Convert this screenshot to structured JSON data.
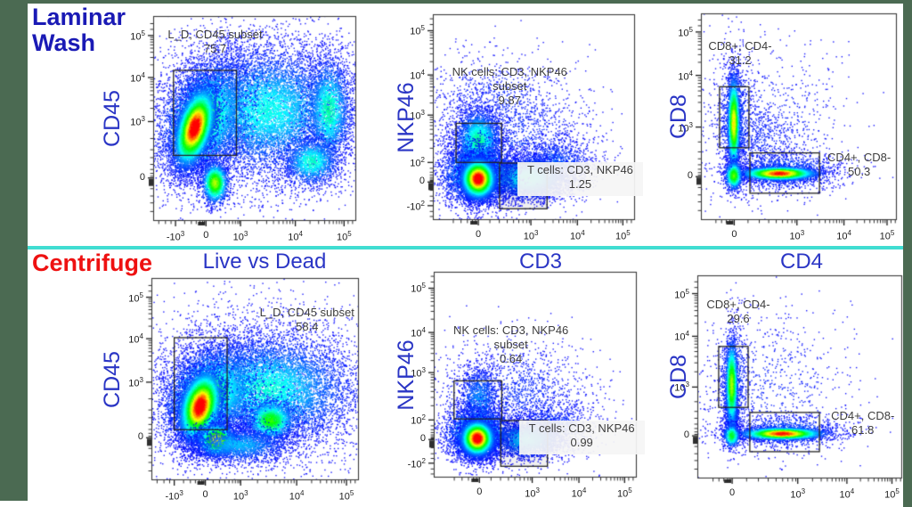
{
  "theme": {
    "header_blue": "#1a1ab5",
    "header_red": "#ee1111",
    "axis_blue": "#2a35c5",
    "divider_cyan": "#40ddd2",
    "border_green": "#4b6a52",
    "tick_color": "#1e1e1e",
    "gate_label_color": "#3d3d3d",
    "dot_base_blue": "#0000ff"
  },
  "headers": {
    "row1_line1": "Laminar",
    "row1_line2": "Wash",
    "row2": "Centrifuge"
  },
  "columns": [
    {
      "label": "Live vs Dead"
    },
    {
      "label": "CD3"
    },
    {
      "label": "CD4"
    }
  ],
  "clusters_format": "cx,cy,sx,sy,n,peak_level,rho (fractions of plot frame, y from top)",
  "chart_data": [
    {
      "id": "laminar-livedead-cd45",
      "type": "scatter",
      "row": "Laminar Wash",
      "xlabel": "Live vs Dead",
      "ylabel": "CD45",
      "xticks": [
        {
          "t": "-10",
          "s": "3",
          "v": -1000,
          "f": 0.11
        },
        {
          "t": "0",
          "v": 0,
          "f": 0.26
        },
        {
          "t": "10",
          "s": "3",
          "v": 1000,
          "f": 0.43
        },
        {
          "t": "10",
          "s": "4",
          "v": 10000,
          "f": 0.7
        },
        {
          "t": "10",
          "s": "5",
          "v": 100000,
          "f": 0.94
        }
      ],
      "yticks": [
        {
          "t": "10",
          "s": "5",
          "v": 100000,
          "f": 0.095
        },
        {
          "t": "10",
          "s": "4",
          "v": 10000,
          "f": 0.3
        },
        {
          "t": "10",
          "s": "3",
          "v": 1000,
          "f": 0.515
        },
        {
          "t": "0",
          "v": 0,
          "f": 0.79
        }
      ],
      "gates": [
        {
          "name": "L_D, CD45 subset",
          "value": "75.7",
          "rect": [
            0.1,
            0.265,
            0.41,
            0.68
          ],
          "fill": false,
          "label": {
            "x": 0.015,
            "y": 0.055,
            "w": 0.58,
            "bg": false
          }
        }
      ],
      "clusters": [
        [
          0.5,
          0.48,
          0.3,
          0.26,
          2400,
          0.05,
          0
        ],
        [
          0.56,
          0.46,
          0.2,
          0.15,
          8500,
          0.26,
          0
        ],
        [
          0.865,
          0.46,
          0.055,
          0.13,
          2400,
          0.33,
          0
        ],
        [
          0.78,
          0.71,
          0.07,
          0.06,
          1500,
          0.3,
          0
        ],
        [
          0.25,
          0.5,
          0.105,
          0.14,
          6000,
          0.42,
          -0.3
        ],
        [
          0.205,
          0.545,
          0.05,
          0.095,
          8000,
          1.0,
          -0.45
        ],
        [
          0.305,
          0.815,
          0.032,
          0.05,
          1700,
          0.62,
          0
        ]
      ]
    },
    {
      "id": "laminar-cd3-nkp46",
      "type": "scatter",
      "row": "Laminar Wash",
      "xlabel": "CD3",
      "ylabel": "NKP46",
      "xticks": [
        {
          "t": "0",
          "v": 0,
          "f": 0.225
        },
        {
          "t": "10",
          "s": "3",
          "v": 1000,
          "f": 0.485
        },
        {
          "t": "10",
          "s": "4",
          "v": 10000,
          "f": 0.715
        },
        {
          "t": "10",
          "s": "5",
          "v": 100000,
          "f": 0.94
        }
      ],
      "yticks": [
        {
          "t": "10",
          "s": "5",
          "v": 100000,
          "f": 0.08
        },
        {
          "t": "10",
          "s": "4",
          "v": 10000,
          "f": 0.295
        },
        {
          "t": "10",
          "s": "3",
          "v": 1000,
          "f": 0.49
        },
        {
          "t": "10",
          "s": "2",
          "v": 100,
          "f": 0.72
        },
        {
          "t": "0",
          "v": 0,
          "f": 0.815
        },
        {
          "t": "-10",
          "s": "2",
          "v": -100,
          "f": 0.93
        }
      ],
      "gates": [
        {
          "name": "NK cells: CD3, NKP46 subset",
          "value": "9.87",
          "rect": [
            0.115,
            0.53,
            0.34,
            0.72
          ],
          "fill": false,
          "label": {
            "x": 0.01,
            "y": 0.245,
            "w": 0.74,
            "bg": false
          }
        },
        {
          "name": "T cells: CD3, NKP46",
          "value": "1.25",
          "rect": [
            0.33,
            0.723,
            0.565,
            0.945
          ],
          "fill": true,
          "label": {
            "x": 0.42,
            "y": 0.72,
            "w": 0.6,
            "bg": true
          }
        }
      ],
      "clusters": [
        [
          0.38,
          0.62,
          0.22,
          0.18,
          1700,
          0.05,
          0
        ],
        [
          0.3,
          0.42,
          0.18,
          0.12,
          600,
          0.04,
          0
        ],
        [
          0.6,
          0.74,
          0.1,
          0.07,
          1400,
          0.1,
          0
        ],
        [
          0.47,
          0.795,
          0.095,
          0.05,
          4000,
          0.27,
          0
        ],
        [
          0.225,
          0.615,
          0.055,
          0.075,
          3000,
          0.34,
          0
        ],
        [
          0.225,
          0.78,
          0.085,
          0.075,
          4000,
          0.36,
          0
        ],
        [
          0.225,
          0.8,
          0.042,
          0.048,
          7200,
          1.0,
          0
        ]
      ]
    },
    {
      "id": "laminar-cd4-cd8",
      "type": "scatter",
      "row": "Laminar Wash",
      "xlabel": "CD4",
      "ylabel": "CD8",
      "xticks": [
        {
          "t": "0",
          "v": 0,
          "f": 0.17
        },
        {
          "t": "10",
          "s": "3",
          "v": 1000,
          "f": 0.49
        },
        {
          "t": "10",
          "s": "4",
          "v": 10000,
          "f": 0.73
        },
        {
          "t": "10",
          "s": "5",
          "v": 100000,
          "f": 0.95
        }
      ],
      "yticks": [
        {
          "t": "10",
          "s": "5",
          "v": 100000,
          "f": 0.09
        },
        {
          "t": "10",
          "s": "4",
          "v": 10000,
          "f": 0.3
        },
        {
          "t": "10",
          "s": "3",
          "v": 1000,
          "f": 0.55
        },
        {
          "t": "0",
          "v": 0,
          "f": 0.79
        }
      ],
      "gates": [
        {
          "name": "CD8+, CD4-",
          "value": "31.2",
          "rect": [
            0.095,
            0.355,
            0.245,
            0.65
          ],
          "fill": false,
          "label": {
            "x": 0.0,
            "y": 0.125,
            "w": 0.4,
            "bg": false
          }
        },
        {
          "name": "CD4+, CD8-",
          "value": "50.3",
          "rect": [
            0.25,
            0.675,
            0.605,
            0.87
          ],
          "fill": false,
          "label": {
            "x": 0.615,
            "y": 0.665,
            "w": 0.385,
            "bg": false
          }
        }
      ],
      "clusters": [
        [
          0.35,
          0.55,
          0.22,
          0.2,
          850,
          0.03,
          0
        ],
        [
          0.28,
          0.62,
          0.1,
          0.1,
          450,
          0.04,
          0
        ],
        [
          0.175,
          0.52,
          0.04,
          0.16,
          1000,
          0.12,
          0
        ],
        [
          0.168,
          0.53,
          0.016,
          0.115,
          2400,
          0.72,
          0
        ],
        [
          0.43,
          0.765,
          0.14,
          0.045,
          1300,
          0.12,
          0
        ],
        [
          0.4,
          0.775,
          0.095,
          0.016,
          3200,
          0.92,
          0
        ],
        [
          0.168,
          0.785,
          0.022,
          0.035,
          850,
          0.55,
          0
        ]
      ]
    },
    {
      "id": "centrifuge-livedead-cd45",
      "type": "scatter",
      "row": "Centrifuge",
      "xlabel": "Live vs Dead",
      "ylabel": "CD45",
      "xticks": [
        {
          "t": "-10",
          "s": "3",
          "v": -1000,
          "f": 0.11
        },
        {
          "t": "0",
          "v": 0,
          "f": 0.26
        },
        {
          "t": "10",
          "s": "3",
          "v": 1000,
          "f": 0.43
        },
        {
          "t": "10",
          "s": "4",
          "v": 10000,
          "f": 0.7
        },
        {
          "t": "10",
          "s": "5",
          "v": 100000,
          "f": 0.94
        }
      ],
      "yticks": [
        {
          "t": "10",
          "s": "5",
          "v": 100000,
          "f": 0.095
        },
        {
          "t": "10",
          "s": "4",
          "v": 10000,
          "f": 0.3
        },
        {
          "t": "10",
          "s": "3",
          "v": 1000,
          "f": 0.515
        },
        {
          "t": "0",
          "v": 0,
          "f": 0.79
        }
      ],
      "gates": [
        {
          "name": "L_D, CD45 subset",
          "value": "58.4",
          "rect": [
            0.11,
            0.295,
            0.365,
            0.75
          ],
          "fill": false,
          "label": {
            "x": 0.5,
            "y": 0.135,
            "w": 0.5,
            "bg": false
          }
        }
      ],
      "clusters": [
        [
          0.5,
          0.55,
          0.3,
          0.24,
          2400,
          0.05,
          0
        ],
        [
          0.55,
          0.55,
          0.21,
          0.13,
          8500,
          0.28,
          0
        ],
        [
          0.575,
          0.705,
          0.06,
          0.05,
          2000,
          0.5,
          0
        ],
        [
          0.28,
          0.58,
          0.11,
          0.12,
          5500,
          0.42,
          -0.25
        ],
        [
          0.235,
          0.635,
          0.05,
          0.085,
          8000,
          1.0,
          -0.3
        ],
        [
          0.315,
          0.8,
          0.045,
          0.04,
          2400,
          0.72,
          0
        ],
        [
          0.42,
          0.825,
          0.13,
          0.045,
          2000,
          0.18,
          0
        ]
      ]
    },
    {
      "id": "centrifuge-cd3-nkp46",
      "type": "scatter",
      "row": "Centrifuge",
      "xlabel": "CD3",
      "ylabel": "NKP46",
      "xticks": [
        {
          "t": "0",
          "v": 0,
          "f": 0.225
        },
        {
          "t": "10",
          "s": "3",
          "v": 1000,
          "f": 0.485
        },
        {
          "t": "10",
          "s": "4",
          "v": 10000,
          "f": 0.715
        },
        {
          "t": "10",
          "s": "5",
          "v": 100000,
          "f": 0.94
        }
      ],
      "yticks": [
        {
          "t": "10",
          "s": "5",
          "v": 100000,
          "f": 0.08
        },
        {
          "t": "10",
          "s": "4",
          "v": 10000,
          "f": 0.295
        },
        {
          "t": "10",
          "s": "3",
          "v": 1000,
          "f": 0.49
        },
        {
          "t": "10",
          "s": "2",
          "v": 100,
          "f": 0.72
        },
        {
          "t": "0",
          "v": 0,
          "f": 0.815
        },
        {
          "t": "-10",
          "s": "2",
          "v": -100,
          "f": 0.93
        }
      ],
      "gates": [
        {
          "name": "NK cells: CD3, NKP46 subset",
          "value": "0.64",
          "rect": [
            0.1,
            0.53,
            0.335,
            0.715
          ],
          "fill": false,
          "label": {
            "x": 0.01,
            "y": 0.25,
            "w": 0.74,
            "bg": false
          }
        },
        {
          "name": "T cells: CD3, NKP46",
          "value": "0.99",
          "rect": [
            0.33,
            0.723,
            0.56,
            0.945
          ],
          "fill": true,
          "label": {
            "x": 0.42,
            "y": 0.725,
            "w": 0.6,
            "bg": true
          }
        }
      ],
      "clusters": [
        [
          0.38,
          0.65,
          0.22,
          0.16,
          1400,
          0.05,
          0
        ],
        [
          0.44,
          0.58,
          0.13,
          0.11,
          450,
          0.04,
          0
        ],
        [
          0.58,
          0.76,
          0.1,
          0.06,
          800,
          0.08,
          0
        ],
        [
          0.46,
          0.815,
          0.085,
          0.045,
          2600,
          0.21,
          0
        ],
        [
          0.225,
          0.62,
          0.05,
          0.085,
          1200,
          0.13,
          0
        ],
        [
          0.215,
          0.79,
          0.075,
          0.065,
          3600,
          0.36,
          0
        ],
        [
          0.215,
          0.81,
          0.04,
          0.042,
          7000,
          1.0,
          0
        ]
      ]
    },
    {
      "id": "centrifuge-cd4-cd8",
      "type": "scatter",
      "row": "Centrifuge",
      "xlabel": "CD4",
      "ylabel": "CD8",
      "xticks": [
        {
          "t": "0",
          "v": 0,
          "f": 0.17
        },
        {
          "t": "10",
          "s": "3",
          "v": 1000,
          "f": 0.49
        },
        {
          "t": "10",
          "s": "4",
          "v": 10000,
          "f": 0.73
        },
        {
          "t": "10",
          "s": "5",
          "v": 100000,
          "f": 0.95
        }
      ],
      "yticks": [
        {
          "t": "10",
          "s": "5",
          "v": 100000,
          "f": 0.09
        },
        {
          "t": "10",
          "s": "4",
          "v": 10000,
          "f": 0.3
        },
        {
          "t": "10",
          "s": "3",
          "v": 1000,
          "f": 0.55
        },
        {
          "t": "0",
          "v": 0,
          "f": 0.79
        }
      ],
      "gates": [
        {
          "name": "CD8+, CD4-",
          "value": "29.6",
          "rect": [
            0.104,
            0.35,
            0.248,
            0.65
          ],
          "fill": false,
          "label": {
            "x": 0.0,
            "y": 0.11,
            "w": 0.4,
            "bg": false
          }
        },
        {
          "name": "CD4+, CD8-",
          "value": "61.8",
          "rect": [
            0.256,
            0.675,
            0.596,
            0.868
          ],
          "fill": false,
          "label": {
            "x": 0.615,
            "y": 0.66,
            "w": 0.385,
            "bg": false
          }
        }
      ],
      "clusters": [
        [
          0.35,
          0.55,
          0.22,
          0.2,
          750,
          0.03,
          0
        ],
        [
          0.17,
          0.7,
          0.02,
          0.05,
          450,
          0.18,
          0
        ],
        [
          0.175,
          0.52,
          0.038,
          0.16,
          800,
          0.1,
          0
        ],
        [
          0.168,
          0.54,
          0.015,
          0.11,
          1900,
          0.62,
          0
        ],
        [
          0.44,
          0.77,
          0.15,
          0.04,
          1100,
          0.12,
          0
        ],
        [
          0.415,
          0.78,
          0.1,
          0.015,
          3000,
          0.92,
          0
        ],
        [
          0.168,
          0.79,
          0.02,
          0.03,
          550,
          0.45,
          0
        ]
      ]
    }
  ]
}
